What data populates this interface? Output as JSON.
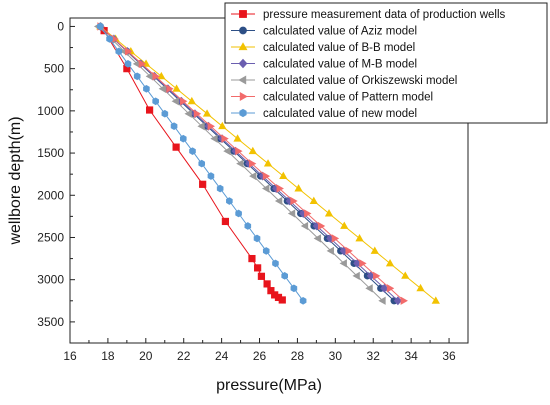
{
  "chart_data": {
    "type": "line",
    "title": "",
    "xlabel": "pressure(MPa)",
    "ylabel": "wellbore depth(m)",
    "xlim": [
      16,
      37
    ],
    "ylim": [
      3750,
      -100
    ],
    "y_inverted": true,
    "x_ticks": [
      16,
      18,
      20,
      22,
      24,
      26,
      28,
      30,
      32,
      34,
      36
    ],
    "y_ticks": [
      0,
      500,
      1000,
      1500,
      2000,
      2500,
      3000,
      3500
    ],
    "grid": false,
    "legend_position": "top-right",
    "series": [
      {
        "name": "pressure measurement data of production wells",
        "color": "#e8141c",
        "marker": "square",
        "points": [
          [
            17.8,
            50
          ],
          [
            19.0,
            500
          ],
          [
            20.2,
            990
          ],
          [
            21.6,
            1430
          ],
          [
            23.0,
            1870
          ],
          [
            24.2,
            2310
          ],
          [
            25.6,
            2750
          ],
          [
            25.9,
            2860
          ],
          [
            26.1,
            2960
          ],
          [
            26.4,
            3050
          ],
          [
            26.6,
            3130
          ],
          [
            26.8,
            3180
          ],
          [
            27.0,
            3210
          ],
          [
            27.2,
            3240
          ]
        ]
      },
      {
        "name": "calculated value of Aziz model",
        "color": "#2d4f86",
        "marker": "circle",
        "points": [
          [
            17.6,
            0
          ],
          [
            33.1,
            3250
          ]
        ]
      },
      {
        "name": "calculated value of B-B model",
        "color": "#f2c200",
        "marker": "triangle-up",
        "points": [
          [
            17.6,
            0
          ],
          [
            35.3,
            3250
          ]
        ]
      },
      {
        "name": "calculated value of M-B model",
        "color": "#6b5fb0",
        "marker": "diamond",
        "points": [
          [
            17.6,
            0
          ],
          [
            33.3,
            3250
          ]
        ]
      },
      {
        "name": "calculated value of Orkiszewski model",
        "color": "#9a9a9a",
        "marker": "triangle-left",
        "points": [
          [
            17.5,
            0
          ],
          [
            32.5,
            3250
          ]
        ]
      },
      {
        "name": "calculated value of Pattern model",
        "color": "#f26b6b",
        "marker": "triangle-right",
        "points": [
          [
            17.6,
            0
          ],
          [
            33.6,
            3250
          ]
        ]
      },
      {
        "name": "calculated value of new model",
        "color": "#5b9bd5",
        "marker": "hexagon",
        "points": [
          [
            17.6,
            0
          ],
          [
            28.3,
            3250
          ]
        ]
      }
    ]
  }
}
